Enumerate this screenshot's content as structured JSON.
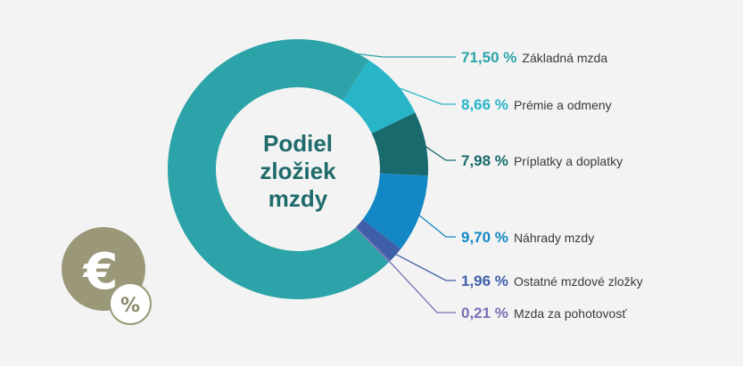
{
  "chart_data": {
    "type": "pie",
    "title": "Podiel zložiek mzdy",
    "title_lines": [
      "Podiel",
      "zložiek",
      "mzdy"
    ],
    "slices": [
      {
        "value": 71.5,
        "value_label": "71,50 %",
        "label": "Základná mzda",
        "color": "#2ba3a8",
        "label_color": "#2ba3a8"
      },
      {
        "value": 8.66,
        "value_label": "8,66 %",
        "label": "Prémie a odmeny",
        "color": "#29b5c8",
        "label_color": "#29b5c8"
      },
      {
        "value": 7.98,
        "value_label": "7,98 %",
        "label": "Príplatky a doplatky",
        "color": "#186a6d",
        "label_color": "#186a6d"
      },
      {
        "value": 9.7,
        "value_label": "9,70 %",
        "label": "Náhrady mzdy",
        "color": "#1487c5",
        "label_color": "#1487c5"
      },
      {
        "value": 1.96,
        "value_label": "1,96 %",
        "label": "Ostatné mzdové zložky",
        "color": "#3f5fa8",
        "label_color": "#3f5fa8"
      },
      {
        "value": 0.21,
        "value_label": "0,21 %",
        "label": "Mzda za pohotovosť",
        "color": "#7a6fb5",
        "label_color": "#7a6fb5"
      }
    ]
  },
  "badge": {
    "euro_symbol": "€",
    "percent_symbol": "%",
    "color": "#9b9879"
  }
}
